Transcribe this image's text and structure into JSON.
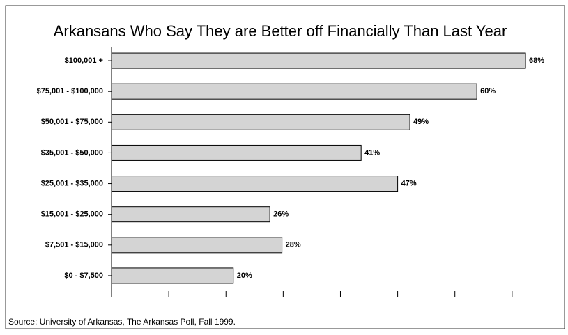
{
  "chart_data": {
    "type": "bar",
    "orientation": "horizontal",
    "title": "Arkansans Who Say They are Better off Financially Than Last Year",
    "categories": [
      "$100,001 +",
      "$75,001 - $100,000",
      "$50,001 - $75,000",
      "$35,001 - $50,000",
      "$25,001 - $35,000",
      "$15,001 - $25,000",
      "$7,501 - $15,000",
      "$0 - $7,500"
    ],
    "values": [
      68,
      60,
      49,
      41,
      47,
      26,
      28,
      20
    ],
    "value_labels": [
      "68%",
      "60%",
      "49%",
      "41%",
      "47%",
      "26%",
      "28%",
      "20%"
    ],
    "color": "#d4d4d4",
    "xlim": [
      0,
      72
    ],
    "xticks": [
      0,
      9.4,
      18.8,
      28.2,
      37.6,
      47,
      56.4,
      65.8
    ],
    "source": "Source: University of Arkansas, The Arkansas Poll, Fall 1999."
  }
}
